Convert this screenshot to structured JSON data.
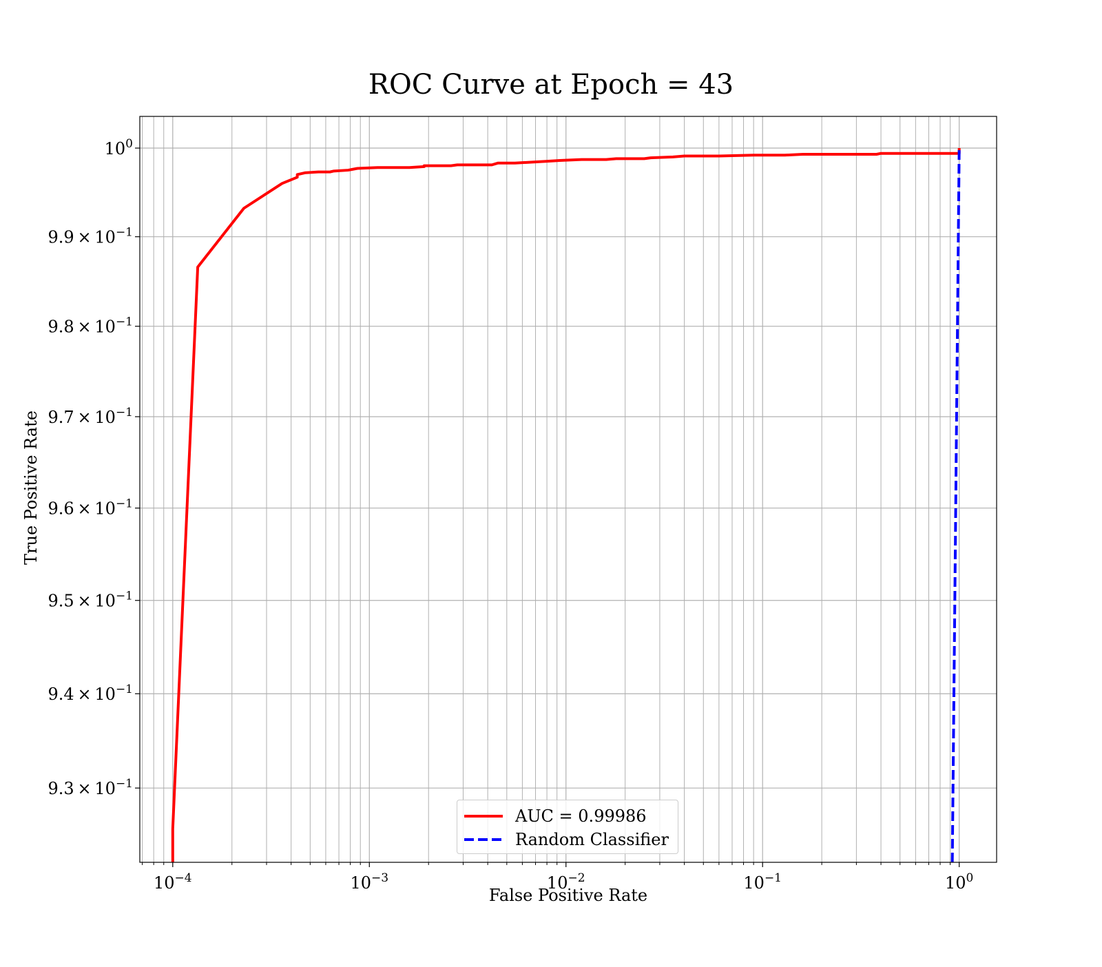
{
  "chart_data": {
    "type": "line",
    "title": "ROC Curve at Epoch = 43",
    "xlabel": "False Positive Rate",
    "ylabel": "True Positive Rate",
    "xscale": "log",
    "yscale": "log",
    "xlim": [
      6.8e-05,
      1.55
    ],
    "ylim": [
      0.9222,
      1.0036
    ],
    "x_ticks": [
      {
        "value": 0.0001,
        "base": "10",
        "exp": "−4"
      },
      {
        "value": 0.001,
        "base": "10",
        "exp": "−3"
      },
      {
        "value": 0.01,
        "base": "10",
        "exp": "−2"
      },
      {
        "value": 0.1,
        "base": "10",
        "exp": "−1"
      },
      {
        "value": 1,
        "base": "10",
        "exp": "0"
      }
    ],
    "y_ticks": [
      {
        "value": 0.93,
        "mant": "9.3",
        "base": "10",
        "exp": "−1"
      },
      {
        "value": 0.94,
        "mant": "9.4",
        "base": "10",
        "exp": "−1"
      },
      {
        "value": 0.95,
        "mant": "9.5",
        "base": "10",
        "exp": "−1"
      },
      {
        "value": 0.96,
        "mant": "9.6",
        "base": "10",
        "exp": "−1"
      },
      {
        "value": 0.97,
        "mant": "9.7",
        "base": "10",
        "exp": "−1"
      },
      {
        "value": 0.98,
        "mant": "9.8",
        "base": "10",
        "exp": "−1"
      },
      {
        "value": 0.99,
        "mant": "9.9",
        "base": "10",
        "exp": "−1"
      },
      {
        "value": 1.0,
        "mant": "",
        "base": "10",
        "exp": "0"
      }
    ],
    "grid": "major and minor",
    "legend_position": "lower center",
    "series": [
      {
        "name": "AUC = 0.99986",
        "color": "#ff0000",
        "style": "solid",
        "points": [
          [
            0.0001,
            0.9222
          ],
          [
            0.0001,
            0.9257
          ],
          [
            0.000134,
            0.9866
          ],
          [
            0.00023,
            0.9932
          ],
          [
            0.00036,
            0.996
          ],
          [
            0.00043,
            0.9967
          ],
          [
            0.00043,
            0.997
          ],
          [
            0.00047,
            0.9972
          ],
          [
            0.00055,
            0.9973
          ],
          [
            0.00063,
            0.9973
          ],
          [
            0.00066,
            0.9974
          ],
          [
            0.00078,
            0.9975
          ],
          [
            0.00087,
            0.9977
          ],
          [
            0.0011,
            0.9978
          ],
          [
            0.0016,
            0.9978
          ],
          [
            0.0019,
            0.9979
          ],
          [
            0.0019,
            0.998
          ],
          [
            0.0026,
            0.998
          ],
          [
            0.0028,
            0.9981
          ],
          [
            0.0042,
            0.9981
          ],
          [
            0.0045,
            0.9983
          ],
          [
            0.0055,
            0.9983
          ],
          [
            0.0079,
            0.9985
          ],
          [
            0.0093,
            0.9986
          ],
          [
            0.012,
            0.9987
          ],
          [
            0.016,
            0.9987
          ],
          [
            0.018,
            0.9988
          ],
          [
            0.025,
            0.9988
          ],
          [
            0.027,
            0.9989
          ],
          [
            0.035,
            0.999
          ],
          [
            0.04,
            0.9991
          ],
          [
            0.06,
            0.9991
          ],
          [
            0.09,
            0.9992
          ],
          [
            0.13,
            0.9992
          ],
          [
            0.16,
            0.9993
          ],
          [
            0.38,
            0.9993
          ],
          [
            0.4,
            0.9994
          ],
          [
            1.0,
            0.9994
          ],
          [
            1.0,
            1.0
          ]
        ]
      },
      {
        "name": "Random Classifier",
        "color": "#0000ff",
        "style": "dashed",
        "points": [
          [
            0.9222,
            0.9222
          ],
          [
            1.0,
            1.0
          ]
        ]
      }
    ]
  }
}
